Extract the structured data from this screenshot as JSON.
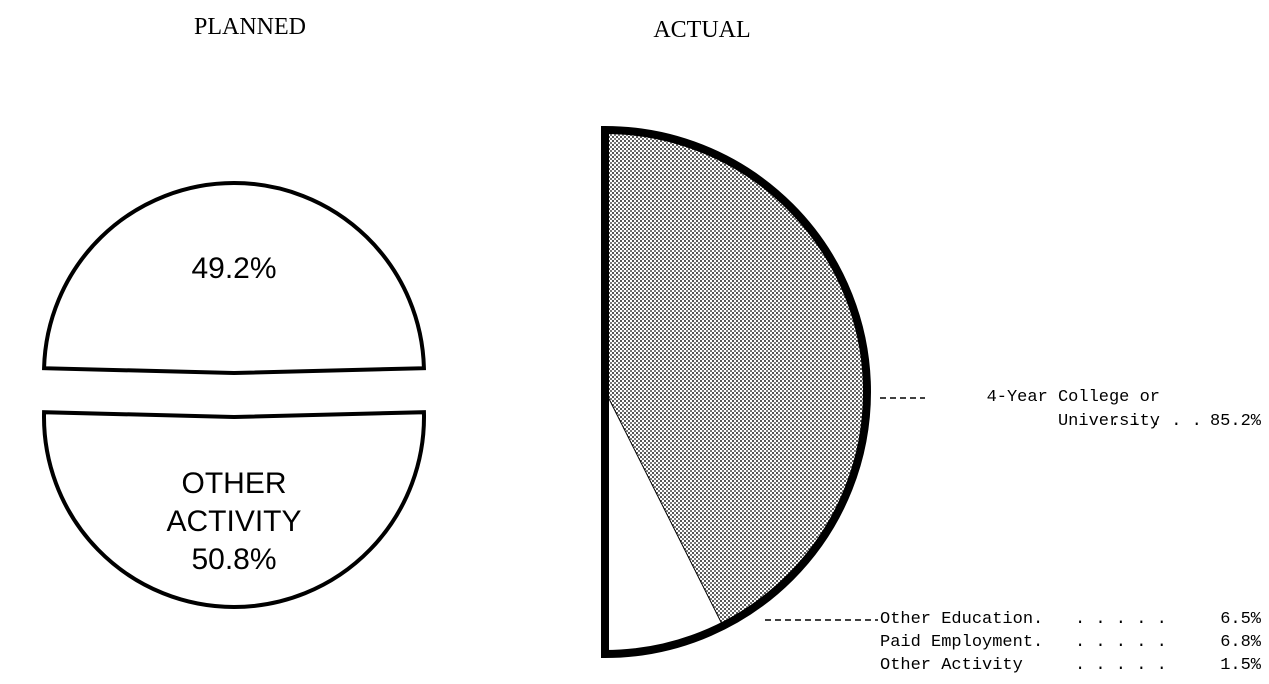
{
  "chart_data": [
    {
      "type": "pie",
      "title": "PLANNED",
      "categories": [
        "OTHER ACTIVITY",
        null
      ],
      "values": [
        50.8,
        49.2
      ],
      "value_labels": [
        "50.8%",
        "49.2%"
      ],
      "color": "#ffffff"
    },
    {
      "type": "halfpie",
      "title": "ACTUAL",
      "categories": [
        "4-Year College or University",
        "Other Education.",
        "Paid Employment.",
        "Other Activity"
      ],
      "values": [
        85.2,
        6.5,
        6.8,
        1.5
      ],
      "value_labels": [
        "85.2%",
        "6.5%",
        "6.8%",
        "1.5%"
      ],
      "colors": [
        "pattern",
        "#ffffff",
        "#ffffff",
        "#ffffff"
      ]
    }
  ]
}
